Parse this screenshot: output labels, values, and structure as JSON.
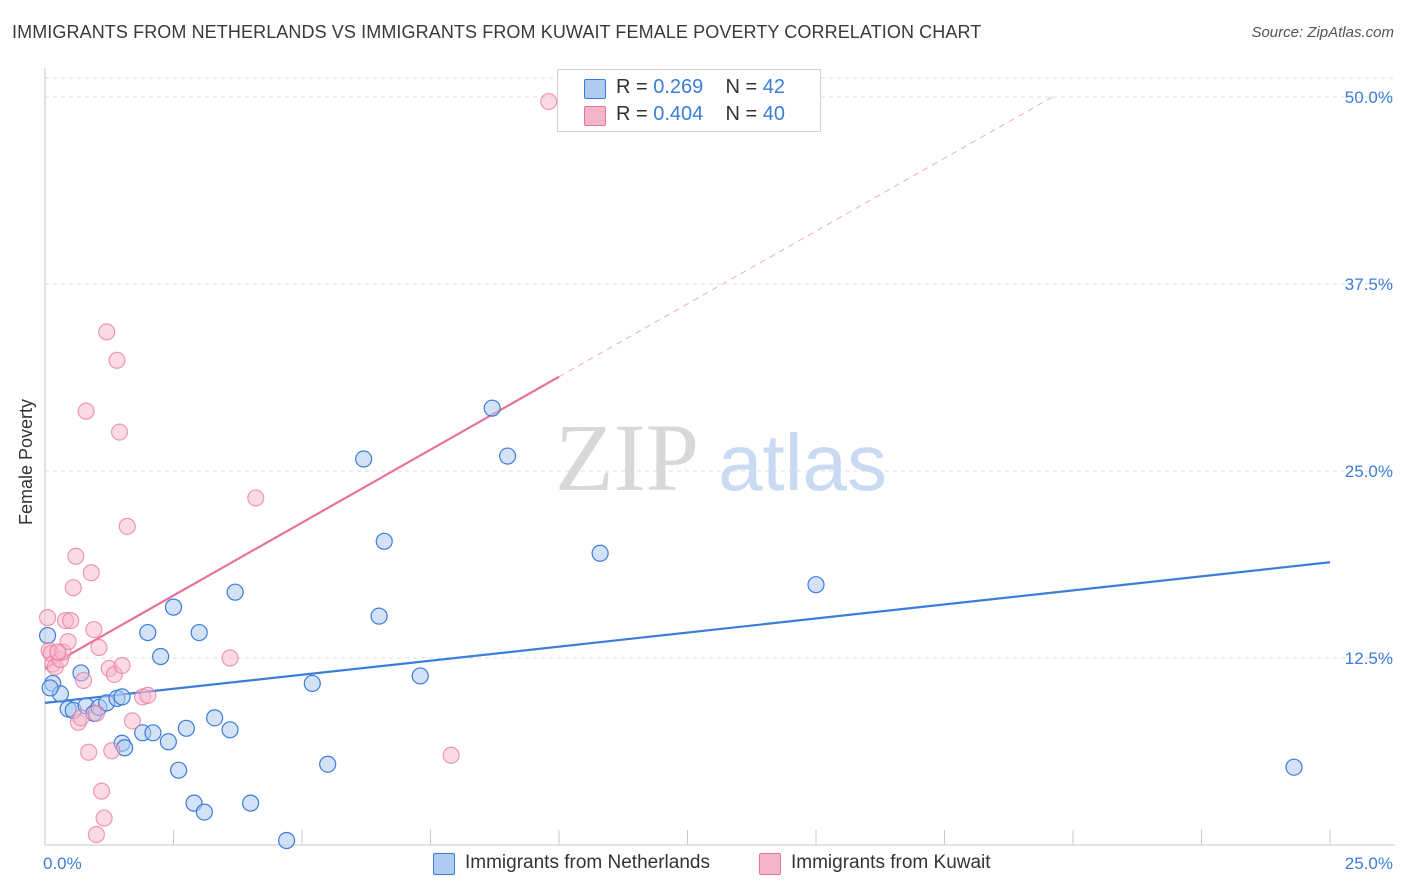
{
  "title": "IMMIGRANTS FROM NETHERLANDS VS IMMIGRANTS FROM KUWAIT FEMALE POVERTY CORRELATION CHART",
  "source": "Source: ZipAtlas.com",
  "watermark": {
    "zip": "ZIP",
    "atlas": "atlas"
  },
  "legend": {
    "series1": {
      "r_label": "R = ",
      "r_value": "0.269",
      "n_label": "N = ",
      "n_value": "42"
    },
    "series2": {
      "r_label": "R = ",
      "r_value": "0.404",
      "n_label": "N = ",
      "n_value": "40"
    }
  },
  "colors": {
    "blue": "#3b7dd8",
    "blue_fill": "#aecbf0",
    "pink": "#e8729a",
    "pink_fill": "#f5b6cb",
    "grid": "#dddddd",
    "axis": "#c8c8c8"
  },
  "chart_data": {
    "type": "scatter",
    "title": "IMMIGRANTS FROM NETHERLANDS VS IMMIGRANTS FROM KUWAIT FEMALE POVERTY CORRELATION CHART",
    "ylabel": "Female Poverty",
    "xlim": [
      0,
      25
    ],
    "ylim": [
      0,
      50
    ],
    "x_tick_labels": {
      "min": "0.0%",
      "max": "25.0%"
    },
    "y_ticks": [
      12.5,
      25.0,
      37.5,
      50.0
    ],
    "y_tick_labels": [
      "12.5%",
      "25.0%",
      "37.5%",
      "50.0%"
    ],
    "grid": true,
    "series": [
      {
        "name": "Immigrants from Netherlands",
        "color": "#3b7dd8",
        "points": [
          [
            0.05,
            14.0
          ],
          [
            0.15,
            10.8
          ],
          [
            0.3,
            10.1
          ],
          [
            0.45,
            9.1
          ],
          [
            0.55,
            9.0
          ],
          [
            0.7,
            11.5
          ],
          [
            0.8,
            9.3
          ],
          [
            0.95,
            8.8
          ],
          [
            1.05,
            9.2
          ],
          [
            1.2,
            9.5
          ],
          [
            1.4,
            9.8
          ],
          [
            1.5,
            9.9
          ],
          [
            1.5,
            6.8
          ],
          [
            1.55,
            6.5
          ],
          [
            1.9,
            7.5
          ],
          [
            2.0,
            14.2
          ],
          [
            2.1,
            7.5
          ],
          [
            2.25,
            12.6
          ],
          [
            2.4,
            6.9
          ],
          [
            2.5,
            15.9
          ],
          [
            2.6,
            5.0
          ],
          [
            2.75,
            7.8
          ],
          [
            2.9,
            2.8
          ],
          [
            3.0,
            14.2
          ],
          [
            3.1,
            2.2
          ],
          [
            3.3,
            8.5
          ],
          [
            3.6,
            7.7
          ],
          [
            3.7,
            16.9
          ],
          [
            4.0,
            2.8
          ],
          [
            4.7,
            0.3
          ],
          [
            5.2,
            10.8
          ],
          [
            5.5,
            5.4
          ],
          [
            6.2,
            25.8
          ],
          [
            6.5,
            15.3
          ],
          [
            6.6,
            20.3
          ],
          [
            7.3,
            11.3
          ],
          [
            8.7,
            29.2
          ],
          [
            9.0,
            26.0
          ],
          [
            10.8,
            19.5
          ],
          [
            15.0,
            17.4
          ],
          [
            24.3,
            5.2
          ],
          [
            0.1,
            10.5
          ]
        ],
        "trend": {
          "x1": 0,
          "y1": 9.5,
          "x2": 25,
          "y2": 18.9
        }
      },
      {
        "name": "Immigrants from Kuwait",
        "color": "#e8729a",
        "points": [
          [
            0.05,
            15.2
          ],
          [
            0.08,
            13.0
          ],
          [
            0.12,
            12.8
          ],
          [
            0.15,
            12.1
          ],
          [
            0.2,
            11.9
          ],
          [
            0.3,
            12.4
          ],
          [
            0.35,
            12.9
          ],
          [
            0.4,
            15.0
          ],
          [
            0.45,
            13.6
          ],
          [
            0.5,
            15.0
          ],
          [
            0.55,
            17.2
          ],
          [
            0.6,
            19.3
          ],
          [
            0.65,
            8.2
          ],
          [
            0.7,
            8.5
          ],
          [
            0.75,
            11.0
          ],
          [
            0.8,
            29.0
          ],
          [
            0.85,
            6.2
          ],
          [
            0.9,
            18.2
          ],
          [
            0.95,
            14.4
          ],
          [
            1.0,
            8.8
          ],
          [
            1.0,
            0.7
          ],
          [
            1.05,
            13.2
          ],
          [
            1.1,
            3.6
          ],
          [
            1.15,
            1.8
          ],
          [
            1.2,
            34.3
          ],
          [
            1.25,
            11.8
          ],
          [
            1.3,
            6.3
          ],
          [
            1.35,
            11.4
          ],
          [
            1.4,
            32.4
          ],
          [
            1.45,
            27.6
          ],
          [
            1.5,
            12.0
          ],
          [
            1.6,
            21.3
          ],
          [
            1.7,
            8.3
          ],
          [
            1.9,
            9.9
          ],
          [
            2.0,
            10.0
          ],
          [
            3.6,
            12.5
          ],
          [
            4.1,
            23.2
          ],
          [
            7.9,
            6.0
          ],
          [
            9.8,
            49.7
          ],
          [
            0.25,
            12.9
          ]
        ],
        "trend": {
          "x1": 0,
          "y1": 11.8,
          "x2": 10,
          "y2": 31.3
        },
        "trend_extension": {
          "x1": 10,
          "y1": 31.3,
          "x2": 19.6,
          "y2": 50.0
        }
      }
    ]
  }
}
